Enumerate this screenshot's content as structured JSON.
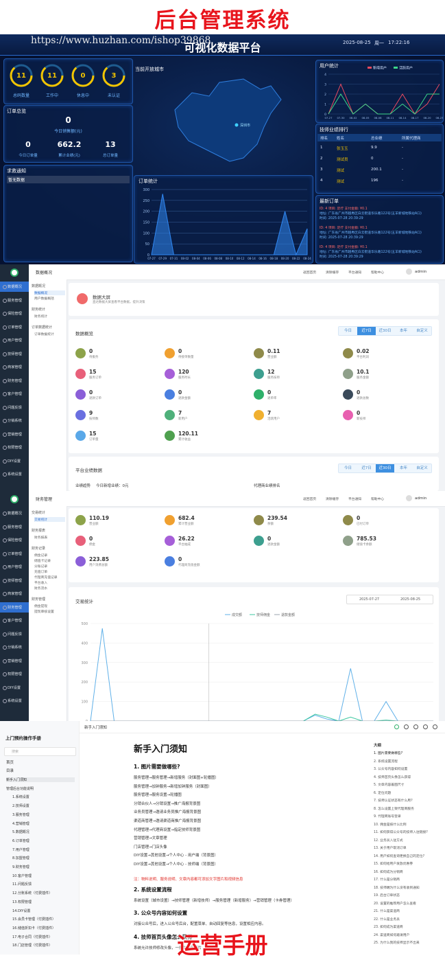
{
  "banner": {
    "title": "后台管理系统"
  },
  "dashboard": {
    "title": "可视化数据平台",
    "watermark": "https://www.huzhan.com/ishop39868",
    "date": "2025-08-25",
    "weekday": "周一",
    "time": "17:22:16",
    "rings": [
      {
        "value": "11",
        "label": "总码数量"
      },
      {
        "value": "11",
        "label": "工作中"
      },
      {
        "value": "0",
        "label": "休息中"
      },
      {
        "value": "3",
        "label": "未认证"
      }
    ],
    "orders": {
      "title": "订单总览",
      "total": "0",
      "total_label": "今日销售额(元)",
      "stats": [
        {
          "value": "0",
          "label": "今日订单量"
        },
        {
          "value": "662.2",
          "label": "累计业绩(元)"
        },
        {
          "value": "13",
          "label": "总订单量"
        }
      ]
    },
    "notice": {
      "title": "求救通知",
      "empty": "暂无数据"
    },
    "map": {
      "title": "当前开放城市",
      "city": "深圳市"
    },
    "order_chart": {
      "type": "area",
      "title": "订单统计",
      "categories": [
        "07-27",
        "07-29",
        "07-31",
        "08-02",
        "08-04",
        "08-06",
        "08-08",
        "08-10",
        "08-12",
        "08-14",
        "08-16",
        "08-18",
        "08-20",
        "08-22",
        "08-24"
      ],
      "values": [
        0,
        280,
        0,
        0,
        0,
        0,
        0,
        0,
        0,
        0,
        0,
        0,
        200,
        0,
        120
      ],
      "color": "#2f86f0",
      "ylim": [
        0,
        300
      ],
      "yticks": [
        0,
        50,
        100,
        150,
        200,
        250,
        300
      ]
    },
    "user_chart": {
      "type": "line",
      "title": "用户统计",
      "categories": [
        "07-27",
        "07-30",
        "08-02",
        "08-05",
        "08-08",
        "08-11",
        "08-14",
        "08-17",
        "08-20",
        "08-23"
      ],
      "series": [
        {
          "name": "新增用户",
          "color": "#e84a5f",
          "values": [
            0,
            3,
            0,
            1,
            0,
            0,
            2,
            0,
            1,
            3
          ]
        },
        {
          "name": "活跃用户",
          "color": "#3cd68a",
          "values": [
            0,
            2,
            0,
            1,
            0,
            0,
            1,
            0,
            2,
            2
          ]
        }
      ],
      "ylim": [
        0,
        4
      ],
      "yticks": [
        0,
        1,
        2,
        3,
        4
      ]
    },
    "ranking": {
      "title": "技师业绩排行",
      "headers": [
        "排名",
        "姓名",
        "总业绩",
        "所属代理商"
      ],
      "rows": [
        [
          "1",
          "张玉玉",
          "9.9",
          "-"
        ],
        [
          "2",
          "测试员",
          "0",
          "-"
        ],
        [
          "3",
          "测试",
          "200.1",
          "-"
        ],
        [
          "4",
          "测试",
          "196",
          "-"
        ]
      ]
    },
    "latest": {
      "title": "最新订单",
      "items": [
        {
          "head": "ID: 4  项目: 足疗  支付金额: ¥0.1",
          "addr": "地址: 广东省广州市越秀区白云街道华乐路122号(五羊新城地铁站A口)",
          "time": "时间: 2025-07-28 20:39:29"
        },
        {
          "head": "ID: 4  项目: 足疗  支付金额: ¥0.1",
          "addr": "地址: 广东省广州市越秀区白云街道华乐路122号(五羊新城地铁站A口)",
          "time": "时间: 2025-07-28 20:39:29"
        },
        {
          "head": "ID: 4  项目: 足疗  支付金额: ¥0.1",
          "addr": "地址: 广东省广州市越秀区白云街道华乐路122号(五羊新城地铁站A口)",
          "time": "时间: 2025-07-28 20:39:29"
        }
      ]
    }
  },
  "admin": {
    "menu": [
      "数据概况",
      "服务管理",
      "保险管理",
      "订单管理",
      "用户管理",
      "技师管理",
      "商家管理",
      "财务管理",
      "客户管理",
      "问题反馈",
      "分销系统",
      "营销管理",
      "权限管理",
      "DIY设置",
      "系统设置"
    ],
    "nav": [
      "返回首页",
      "清除缓存",
      "平台通知",
      "帮助中心"
    ],
    "user": "admin"
  },
  "overview_page": {
    "header": "数据概况",
    "active_menu": 0,
    "submenu": [
      {
        "group": "数据概况",
        "items": [
          "数据概况",
          "用户数据概括"
        ]
      },
      {
        "group": "财务统计",
        "items": [
          "财务统计"
        ]
      },
      {
        "group": "订单数据统计",
        "items": [
          "订单数据统计"
        ]
      }
    ],
    "screen": {
      "title": "数据大屏",
      "desc": "直达数据大屏查看平台数据，提升决策"
    },
    "overview": {
      "title": "数据概览",
      "tabs": [
        "今日",
        "近7日",
        "近30日",
        "本年",
        "自定义"
      ],
      "active": 1,
      "stats": [
        {
          "value": "0",
          "label": "待服务"
        },
        {
          "value": "0",
          "label": "待接单数量"
        },
        {
          "value": "0.11",
          "label": "营业额"
        },
        {
          "value": "0.02",
          "label": "平台利润"
        },
        {
          "value": "15",
          "label": "服务订单"
        },
        {
          "value": "120",
          "label": "服务时长"
        },
        {
          "value": "12",
          "label": "服务技师"
        },
        {
          "value": "10.1",
          "label": "服务金额"
        },
        {
          "value": "0",
          "label": "退款订单"
        },
        {
          "value": "0",
          "label": "退款金额"
        },
        {
          "value": "0",
          "label": "退单率"
        },
        {
          "value": "0",
          "label": "退款总数"
        },
        {
          "value": "9",
          "label": "技师数"
        },
        {
          "value": "7",
          "label": "新用户"
        },
        {
          "value": "7",
          "label": "活跃用户"
        },
        {
          "value": "0",
          "label": "新技师"
        },
        {
          "value": "15",
          "label": "订单量"
        },
        {
          "value": "120.11",
          "label": "累计收益"
        }
      ]
    },
    "platform": {
      "title": "平台业绩数据",
      "tabs": [
        "今日",
        "近7日",
        "近30日",
        "本年",
        "自定义"
      ],
      "active": 2,
      "trend": "业绩趋势",
      "today": "今日新增业绩：0元",
      "rank": "代理商业绩排名"
    }
  },
  "finance_page": {
    "header": "财务管理",
    "active_menu": 7,
    "submenu": [
      {
        "group": "交易统计",
        "items": [
          "交易统计"
        ]
      },
      {
        "group": "财务报表",
        "items": [
          "财务报表"
        ]
      },
      {
        "group": "财务记录",
        "items": [
          "佣金记录",
          "储值卡记录",
          "分账记录",
          "充值订单",
          "代理商充值记录",
          "平台收入",
          "财务流水"
        ]
      },
      {
        "group": "财务管理",
        "items": [
          "佣金提现",
          "提现审核设置"
        ]
      }
    ],
    "stats": [
      {
        "value": "110.19",
        "label": "营业额"
      },
      {
        "value": "682.4",
        "label": "累计营业额"
      },
      {
        "value": "239.54",
        "label": "余额"
      },
      {
        "value": "0",
        "label": "已付订单"
      },
      {
        "value": "0",
        "label": "佣金"
      },
      {
        "value": "26.22",
        "label": "平台抽成"
      },
      {
        "value": "0",
        "label": "退款金额"
      },
      {
        "value": "785.53",
        "label": "储值卡余额"
      },
      {
        "value": "223.85",
        "label": "用户消费总额"
      },
      {
        "value": "0",
        "label": "代理商充值金额"
      }
    ],
    "chart": {
      "type": "line",
      "title": "交易统计",
      "start": "2025-07-27",
      "end": "2025-08-25",
      "series": [
        {
          "name": "成交额",
          "color": "#5fb0e8",
          "values": [
            0,
            475,
            0,
            0,
            0,
            0,
            0,
            0,
            0,
            0,
            0,
            0,
            0,
            0,
            0,
            0,
            0,
            0,
            0,
            30,
            10,
            0,
            270,
            0,
            0,
            100,
            0,
            0,
            0,
            0
          ]
        },
        {
          "name": "技师佣金",
          "color": "#3cc7a0",
          "values": [
            0,
            0,
            0,
            0,
            0,
            0,
            0,
            0,
            0,
            0,
            0,
            0,
            0,
            0,
            0,
            0,
            0,
            0,
            0,
            35,
            20,
            0,
            20,
            0,
            0,
            5,
            0,
            0,
            0,
            0
          ]
        },
        {
          "name": "退款金额",
          "color": "#9aa3ad",
          "values": [
            0,
            0,
            0,
            0,
            0,
            0,
            0,
            0,
            0,
            0,
            0,
            0,
            0,
            0,
            0,
            0,
            0,
            0,
            0,
            0,
            0,
            0,
            0,
            0,
            0,
            0,
            0,
            0,
            0,
            0
          ]
        }
      ],
      "ylim": [
        0,
        500
      ],
      "yticks": [
        0,
        100,
        200,
        300,
        400,
        500
      ]
    }
  },
  "doc": {
    "tab": "新手入门须知",
    "book": "上门预约操作手册",
    "search": "搜索",
    "nav": [
      "首页",
      "目录"
    ],
    "tree": [
      "新手入门须知",
      "管理后台功能说明",
      "1.系统设置",
      "2.技师设置",
      "3.服务管理",
      "4.营销管理",
      "5.数据概况",
      "6.订单管理",
      "7.用户管理",
      "8.加盟管理",
      "9.财务管理",
      "10.客户管理",
      "11.问题反馈",
      "12.分账系统（付费插件）",
      "13.权限管理",
      "14.DIY设置",
      "15.会员卡管理（付费插件）",
      "16.储值折扣卡（付费插件）",
      "17.电子合同（付费插件）",
      "18.门店管理（付费插件）"
    ],
    "title": "新手入门须知",
    "sections": [
      {
        "heading": "1. 图片需要做哪些?",
        "lines": [
          "服务管理→服务管理→新增服务（封面图+轮播图）",
          "服务管理→加钟服务→新增加钟服务（封面图）",
          "服务管理→服务设置→轮播图",
          "分销合伙人→分销设置→推广海报背景图",
          "业务员管理→邀请业务员推广海报背景图",
          "渠道商管理→邀请渠道商推广海报背景图",
          "代理管理→代理商设置→指定技师背景图",
          "营销管理→文章管理",
          "门店管理→门店头像",
          "DIY设置→其他设置→个人中心 - 用户端（背景图）",
          "DIY设置→其他设置→个人中心 - 技师端（背景图）"
        ],
        "note": "注：物料说明、服务说明、文章内容都可添加文字图片和视频信息"
      },
      {
        "heading": "2. 系统设置流程",
        "lines": [
          "系统设置（城市设置）→技师管理（新增技师）→服务管理（新增服务）→营销管理（卡券管理）"
        ]
      },
      {
        "heading": "3. 公众号内容如何设置",
        "lines": [
          "对接公众号后，进入公众号后台，配置菜单、自动回复等信息，设置相应内容。"
        ]
      },
      {
        "heading": "4. 技师首页头像怎么获得",
        "lines": [
          "系统允许技师修改头像，一般为真实照片"
        ]
      }
    ],
    "outline_title": "大纲",
    "outline": [
      "1. 图片需要做哪些?",
      "2. 系统设置流程",
      "3. 公众号内容如何设置",
      "4. 技师首页头像怎么获得",
      "5. 文章内容着图尺寸",
      "6. 定位问题",
      "7. 技师认证状态有什么用?",
      "8. 怎么设置上架代理商服务",
      "9. 代理商账号登录",
      "10. 佣金是按什么比例",
      "11. 如何获得公众号的技师入驻链接?",
      "12. 业务员入驻方式",
      "13. 关于用户取消订单",
      "14. 用户如何查询更换自己的定位?",
      "15. 如何给用户发放优惠券",
      "16. 如何成为分销商",
      "17. 什么是分销商",
      "18. 技师端为什么没有收到通知",
      "19. 后台订单状态",
      "20. 设置的推荐用户怎么查看",
      "21. 什么是渠道商",
      "22. 什么是业务员",
      "23. 如何成为渠道商",
      "24. 渠道商如何邀请用户",
      "25. 为什么我的技师显示不出来"
    ]
  },
  "footer": {
    "title": "运营手册"
  }
}
